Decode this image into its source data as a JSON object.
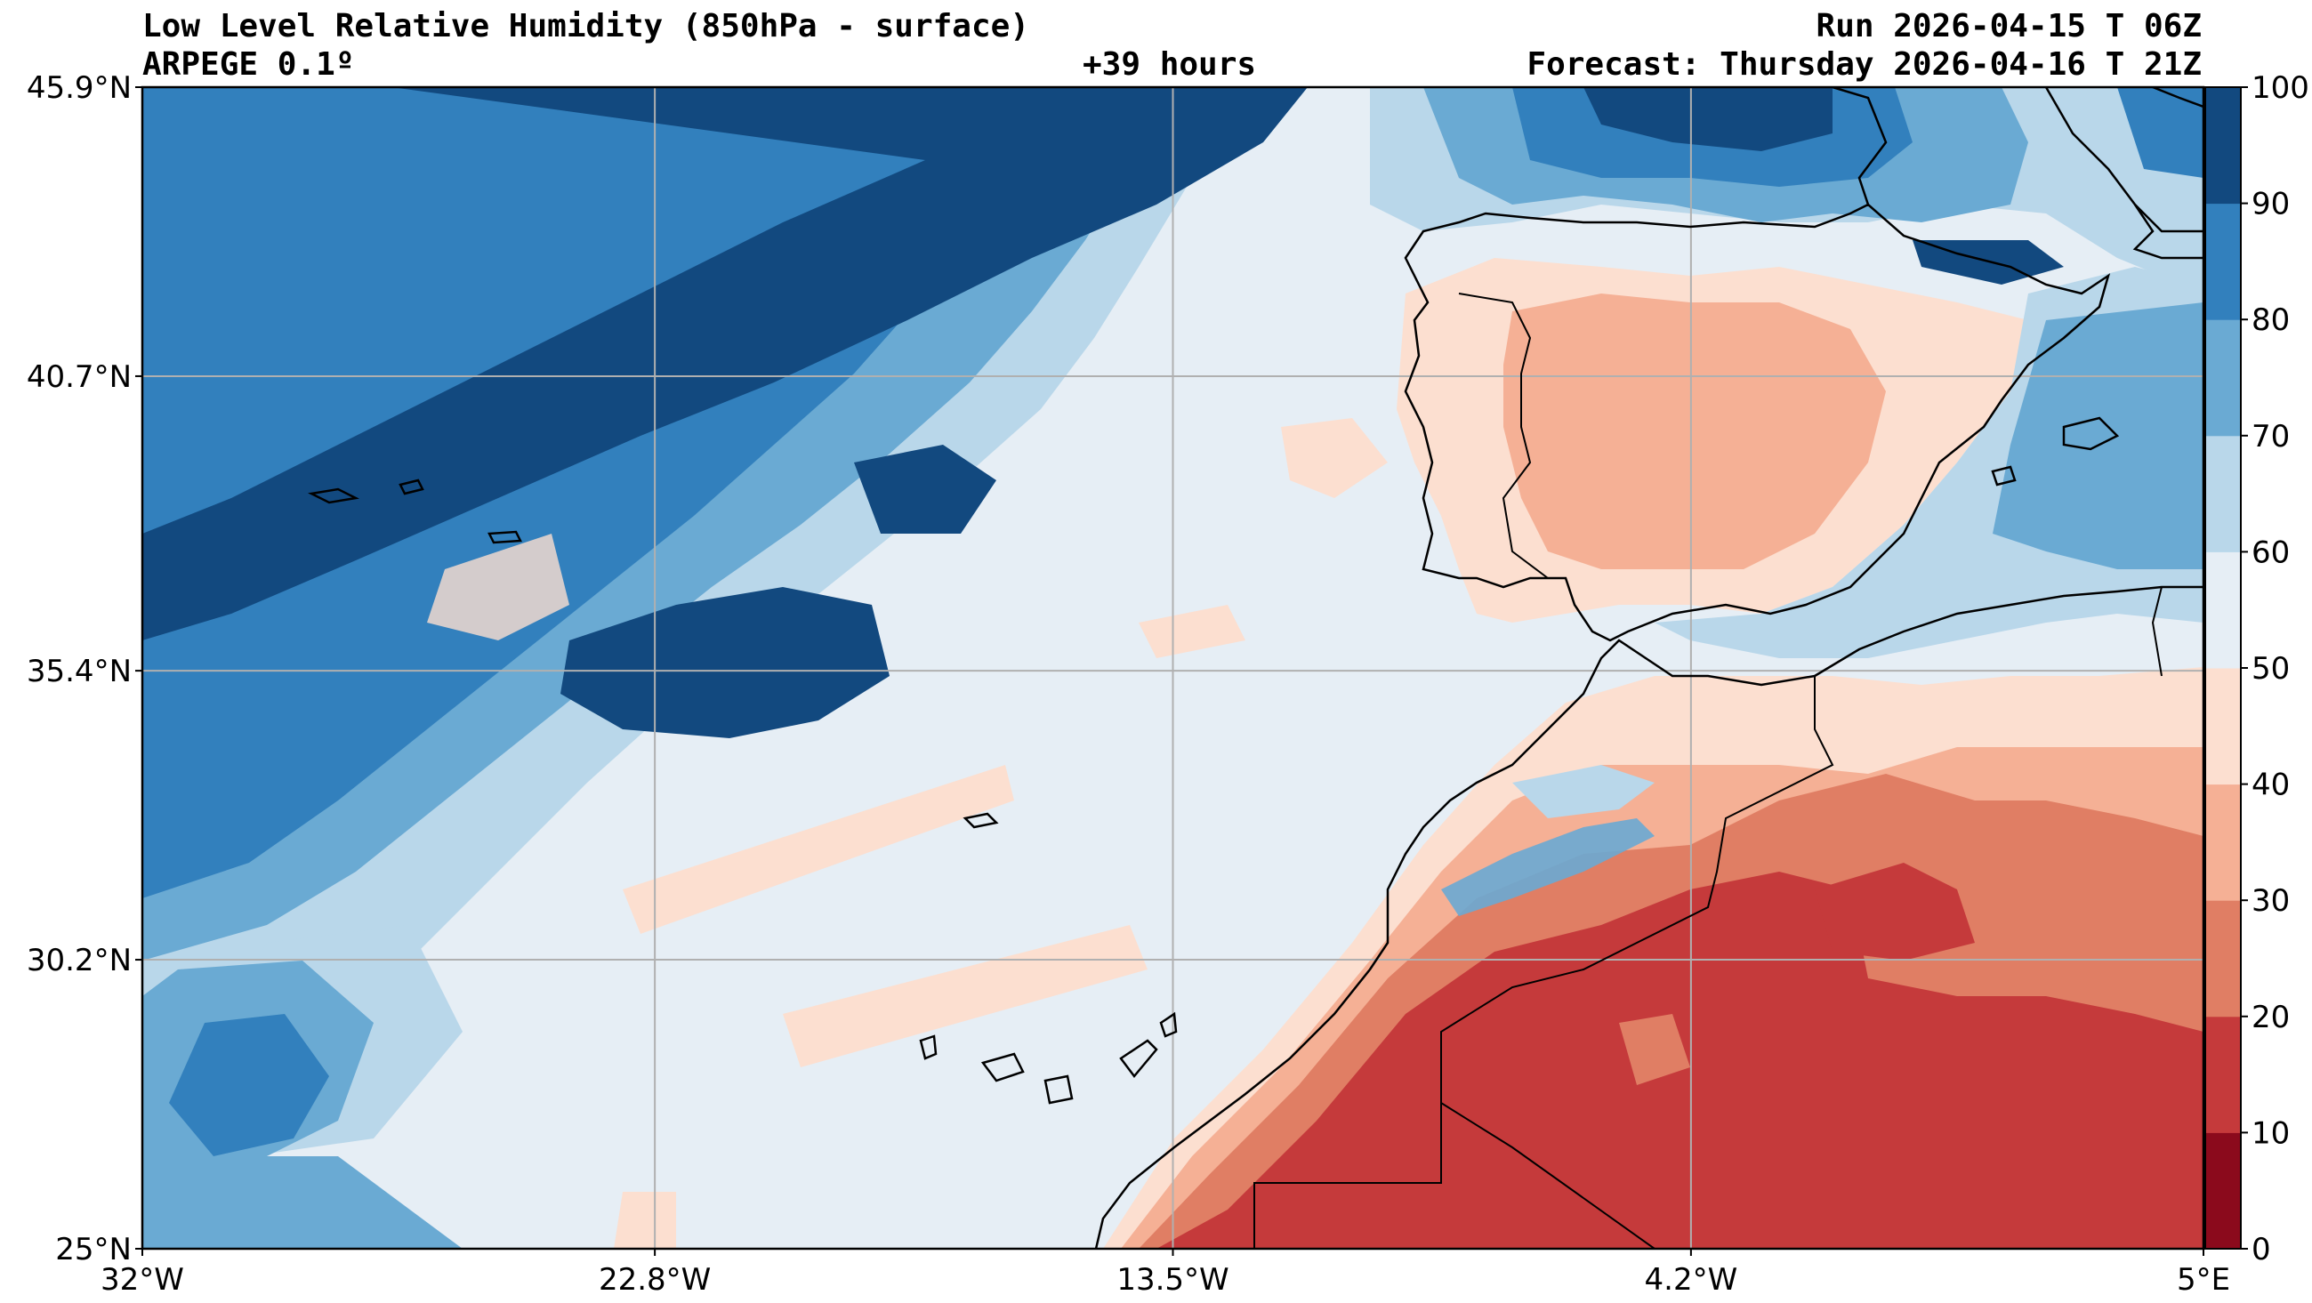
{
  "header": {
    "title_left_1": "Low Level Relative Humidity (850hPa - surface)",
    "title_left_2": "ARPEGE 0.1º",
    "title_center": "+39 hours",
    "title_right_1": "Run 2026-04-15 T 06Z",
    "title_right_2": "Forecast: Thursday 2026-04-16 T 21Z"
  },
  "map": {
    "lat_range": [
      25.0,
      45.9
    ],
    "lon_range": [
      -32.0,
      5.0
    ],
    "lat_ticks": [
      "45.9°N",
      "40.7°N",
      "35.4°N",
      "30.2°N",
      "25°N"
    ],
    "lat_tick_values": [
      45.9,
      40.7,
      35.4,
      30.2,
      25.0
    ],
    "lon_ticks": [
      "32°W",
      "22.8°W",
      "13.5°W",
      "4.2°W",
      "5°E"
    ],
    "lon_tick_values": [
      -32.0,
      -22.8,
      -13.5,
      -4.2,
      5.0
    ],
    "grid": true,
    "features": [
      "coastlines",
      "borders",
      "islands"
    ]
  },
  "colorbar": {
    "levels": [
      0,
      10,
      20,
      30,
      40,
      50,
      60,
      70,
      80,
      90,
      100
    ],
    "labels": [
      "100",
      "90",
      "80",
      "70",
      "60",
      "50",
      "40",
      "30",
      "20",
      "10",
      "0"
    ],
    "colors": [
      "#8b0a1c",
      "#c53a3b",
      "#e07e64",
      "#f5b095",
      "#fcdfd0",
      "#e6eef5",
      "#b9d7ea",
      "#6aaad3",
      "#3280bd",
      "#12497f"
    ],
    "placement": "right"
  }
}
